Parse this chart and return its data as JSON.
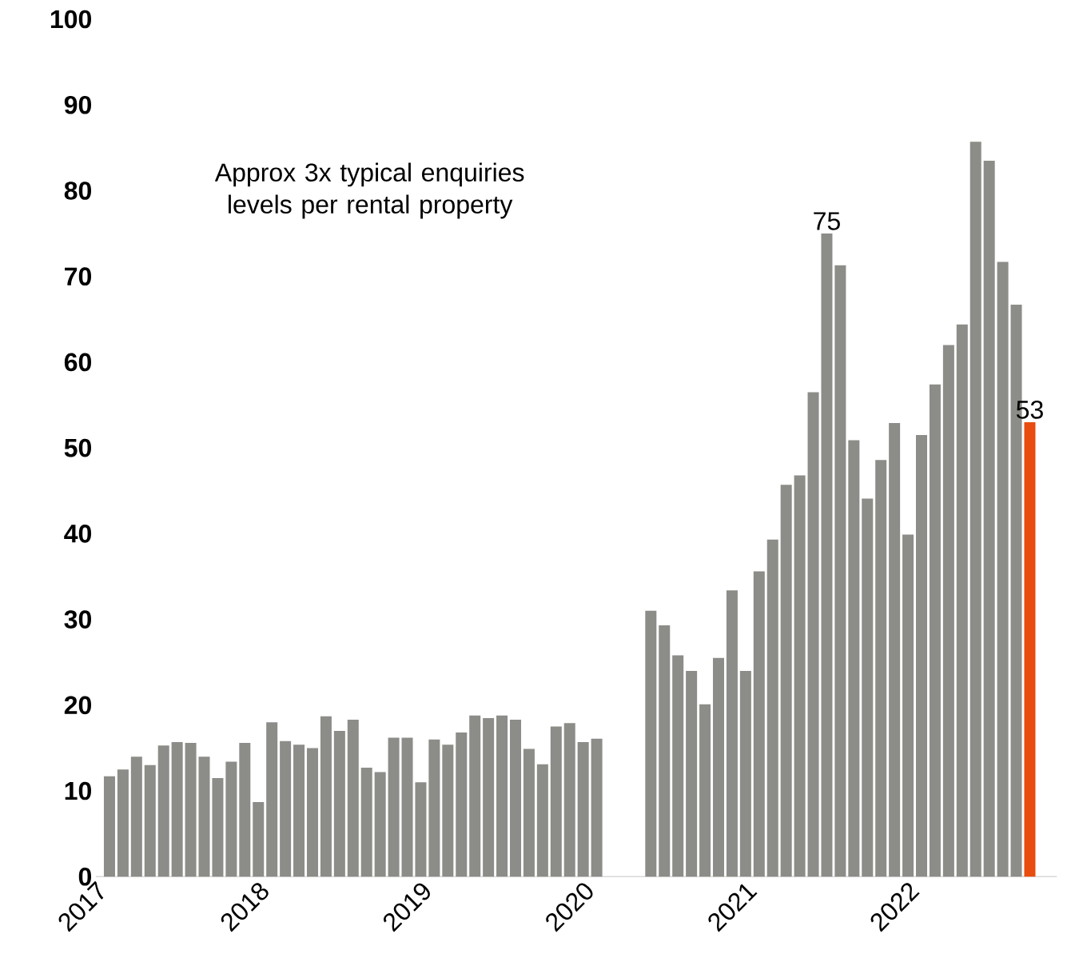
{
  "chart_data": {
    "type": "bar",
    "x": [
      "2017-02",
      "2017-03",
      "2017-04",
      "2017-05",
      "2017-06",
      "2017-07",
      "2017-08",
      "2017-09",
      "2017-10",
      "2017-11",
      "2017-12",
      "2018-01",
      "2018-02",
      "2018-03",
      "2018-04",
      "2018-05",
      "2018-06",
      "2018-07",
      "2018-08",
      "2018-09",
      "2018-10",
      "2018-11",
      "2018-12",
      "2019-01",
      "2019-02",
      "2019-03",
      "2019-04",
      "2019-05",
      "2019-06",
      "2019-07",
      "2019-08",
      "2019-09",
      "2019-10",
      "2019-11",
      "2019-12",
      "2020-01",
      "2020-02",
      "2020-06",
      "2020-07",
      "2020-08",
      "2020-09",
      "2020-10",
      "2020-11",
      "2020-12",
      "2021-01",
      "2021-02",
      "2021-03",
      "2021-04",
      "2021-05",
      "2021-06",
      "2021-07",
      "2021-08",
      "2021-09",
      "2021-10",
      "2021-11",
      "2021-12",
      "2022-01",
      "2022-02",
      "2022-03",
      "2022-04",
      "2022-05",
      "2022-06",
      "2022-07",
      "2022-08",
      "2022-09",
      "2022-10"
    ],
    "values": [
      11.7,
      12.5,
      14,
      13,
      15.3,
      15.7,
      15.6,
      14,
      11.5,
      13.4,
      15.6,
      8.7,
      18,
      15.8,
      15.4,
      15,
      18.7,
      17,
      18.3,
      12.7,
      12.2,
      16.2,
      16.2,
      11,
      16,
      15.4,
      16.8,
      18.8,
      18.5,
      18.8,
      18.3,
      14.9,
      13.1,
      17.5,
      17.9,
      15.7,
      16.1,
      31,
      29.3,
      25.8,
      24,
      20.1,
      25.5,
      33.4,
      24,
      35.6,
      39.3,
      45.7,
      46.8,
      56.5,
      75,
      71.3,
      50.9,
      44.1,
      48.6,
      52.9,
      39.9,
      51.5,
      57.4,
      62,
      64.4,
      85.7,
      83.5,
      71.7,
      66.7,
      53
    ],
    "colors": [
      "#8c8c88",
      "#8c8c88",
      "#8c8c88",
      "#8c8c88",
      "#8c8c88",
      "#8c8c88",
      "#8c8c88",
      "#8c8c88",
      "#8c8c88",
      "#8c8c88",
      "#8c8c88",
      "#8c8c88",
      "#8c8c88",
      "#8c8c88",
      "#8c8c88",
      "#8c8c88",
      "#8c8c88",
      "#8c8c88",
      "#8c8c88",
      "#8c8c88",
      "#8c8c88",
      "#8c8c88",
      "#8c8c88",
      "#8c8c88",
      "#8c8c88",
      "#8c8c88",
      "#8c8c88",
      "#8c8c88",
      "#8c8c88",
      "#8c8c88",
      "#8c8c88",
      "#8c8c88",
      "#8c8c88",
      "#8c8c88",
      "#8c8c88",
      "#8c8c88",
      "#8c8c88",
      "#8c8c88",
      "#8c8c88",
      "#8c8c88",
      "#8c8c88",
      "#8c8c88",
      "#8c8c88",
      "#8c8c88",
      "#8c8c88",
      "#8c8c88",
      "#8c8c88",
      "#8c8c88",
      "#8c8c88",
      "#8c8c88",
      "#8c8c88",
      "#8c8c88",
      "#8c8c88",
      "#8c8c88",
      "#8c8c88",
      "#8c8c88",
      "#8c8c88",
      "#8c8c88",
      "#8c8c88",
      "#8c8c88",
      "#8c8c88",
      "#8c8c88",
      "#8c8c88",
      "#8c8c88",
      "#8c8c88",
      "#e84c0e"
    ],
    "value_labels": [
      null,
      null,
      null,
      null,
      null,
      null,
      null,
      null,
      null,
      null,
      null,
      null,
      null,
      null,
      null,
      null,
      null,
      null,
      null,
      null,
      null,
      null,
      null,
      null,
      null,
      null,
      null,
      null,
      null,
      null,
      null,
      null,
      null,
      null,
      null,
      null,
      null,
      null,
      null,
      null,
      null,
      null,
      null,
      null,
      null,
      null,
      null,
      null,
      null,
      null,
      "75",
      null,
      null,
      null,
      null,
      null,
      null,
      null,
      null,
      null,
      null,
      null,
      null,
      null,
      null,
      "53"
    ],
    "annotations": [
      "Approx 3x typical enquiries levels per rental property"
    ],
    "xlim": [
      "2017-01",
      "2022-12"
    ],
    "xticks": [
      "2017",
      "2018",
      "2019",
      "2020",
      "2021",
      "2022"
    ],
    "ylim": [
      0,
      100
    ],
    "yticks": [
      0,
      10,
      20,
      30,
      40,
      50,
      60,
      70,
      80,
      90,
      100
    ]
  }
}
